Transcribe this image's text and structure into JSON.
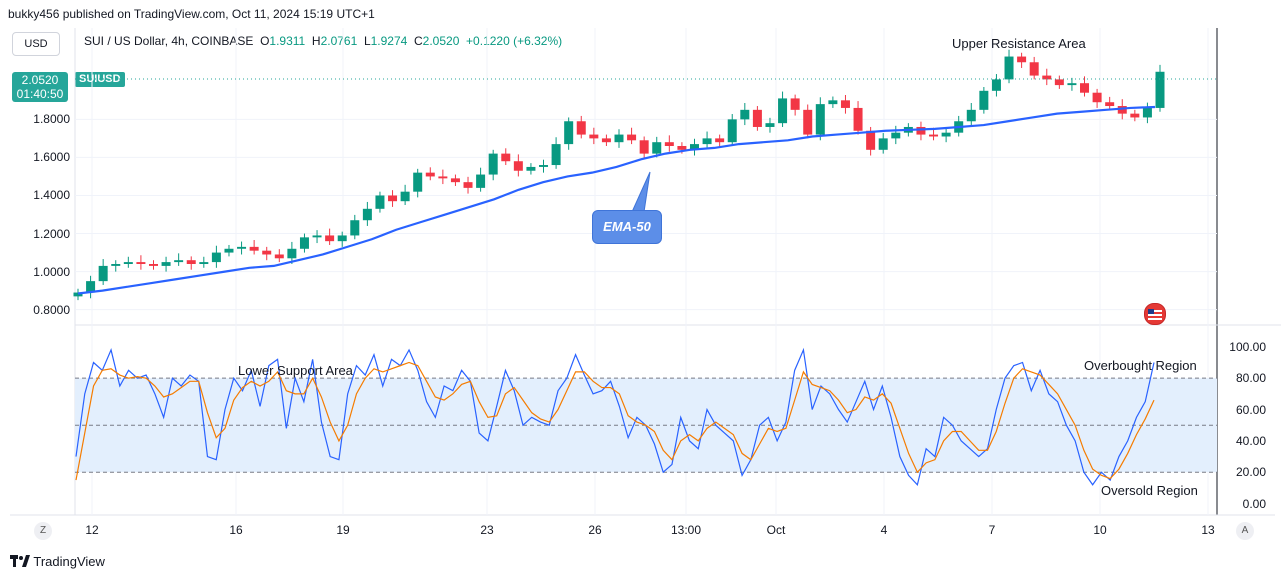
{
  "publish_line": "bukky456 published on TradingView.com, Oct 11, 2024 15:19 UTC+1",
  "currency_button": "USD",
  "symbol": {
    "name": "SUI / US Dollar, 4h, COINBASE",
    "o_label": "O",
    "o": "1.9311",
    "h_label": "H",
    "h": "2.0761",
    "l_label": "L",
    "l": "1.9274",
    "c_label": "C",
    "c": "2.0520",
    "change": "+0.1220 (+6.32%)"
  },
  "price_badge": {
    "price": "2.0520",
    "countdown": "01:40:50",
    "ticker": "SUIUSD"
  },
  "annotations": {
    "upper_resistance": "Upper Resistance Area",
    "lower_support": "Lower Support Area",
    "ema": "EMA-50",
    "overbought": "Overbought Region",
    "oversold": "Oversold Region"
  },
  "buttons": {
    "z": "Z",
    "a": "A"
  },
  "footer": {
    "brand": "TradingView"
  },
  "colors": {
    "up": "#089981",
    "down": "#f23645",
    "ema": "#2962ff",
    "k_line": "#2962ff",
    "d_line": "#f57c00",
    "band": "#e3effd"
  },
  "chart_data": [
    {
      "type": "candlestick",
      "yticks": [
        "0.8000",
        "1.0000",
        "1.2000",
        "1.4000",
        "1.6000",
        "1.8000"
      ],
      "ylim": [
        0.73,
        2.28
      ],
      "xticks": [
        "12",
        "16",
        "19",
        "23",
        "26",
        "13:00",
        "Oct",
        "4",
        "7",
        "10",
        "13"
      ],
      "last_price": 2.052,
      "close": [
        0.89,
        0.95,
        1.03,
        1.04,
        1.05,
        1.04,
        1.03,
        1.05,
        1.06,
        1.04,
        1.05,
        1.1,
        1.12,
        1.13,
        1.11,
        1.09,
        1.07,
        1.12,
        1.18,
        1.19,
        1.16,
        1.19,
        1.27,
        1.33,
        1.4,
        1.37,
        1.42,
        1.52,
        1.5,
        1.49,
        1.47,
        1.44,
        1.51,
        1.62,
        1.58,
        1.53,
        1.55,
        1.56,
        1.67,
        1.79,
        1.72,
        1.7,
        1.68,
        1.72,
        1.69,
        1.62,
        1.68,
        1.66,
        1.64,
        1.67,
        1.7,
        1.68,
        1.8,
        1.85,
        1.76,
        1.78,
        1.91,
        1.85,
        1.72,
        1.88,
        1.9,
        1.86,
        1.74,
        1.64,
        1.7,
        1.73,
        1.76,
        1.72,
        1.71,
        1.73,
        1.79,
        1.85,
        1.95,
        2.01,
        2.13,
        2.1,
        2.03,
        2.01,
        1.98,
        1.99,
        1.94,
        1.89,
        1.87,
        1.83,
        1.81,
        1.86,
        2.05
      ],
      "ema50": [
        0.885,
        0.9,
        0.92,
        0.94,
        0.96,
        0.98,
        1.0,
        1.02,
        1.03,
        1.06,
        1.09,
        1.13,
        1.17,
        1.22,
        1.26,
        1.3,
        1.34,
        1.38,
        1.43,
        1.47,
        1.5,
        1.52,
        1.55,
        1.59,
        1.62,
        1.64,
        1.65,
        1.67,
        1.68,
        1.69,
        1.71,
        1.72,
        1.73,
        1.74,
        1.745,
        1.75,
        1.76,
        1.77,
        1.79,
        1.81,
        1.83,
        1.84,
        1.85,
        1.86,
        1.865
      ]
    },
    {
      "type": "line",
      "yticks": [
        "0.00",
        "20.00",
        "40.00",
        "60.00",
        "80.00",
        "100.00"
      ],
      "ylim": [
        -6,
        112
      ],
      "bands": [
        20,
        80
      ],
      "midline": 50,
      "series": [
        {
          "values": [
            30,
            70,
            90,
            85,
            98,
            75,
            85,
            80,
            82,
            70,
            55,
            80,
            75,
            82,
            78,
            30,
            28,
            60,
            80,
            72,
            85,
            62,
            88,
            92,
            48,
            80,
            65,
            92,
            52,
            30,
            28,
            70,
            88,
            82,
            95,
            75,
            92,
            88,
            98,
            85,
            65,
            55,
            75,
            72,
            85,
            78,
            45,
            40,
            62,
            85,
            72,
            50,
            55,
            52,
            50,
            72,
            80,
            95,
            82,
            70,
            72,
            78,
            62,
            42,
            55,
            50,
            38,
            20,
            25,
            55,
            40,
            35,
            60,
            50,
            45,
            40,
            18,
            28,
            50,
            55,
            40,
            52,
            85,
            98,
            60,
            75,
            70,
            60,
            52,
            65,
            78,
            60,
            75,
            55,
            30,
            18,
            12,
            35,
            30,
            55,
            50,
            40,
            35,
            30,
            35,
            60,
            80,
            88,
            90,
            72,
            85,
            70,
            65,
            50,
            40,
            20,
            12,
            20,
            15,
            30,
            40,
            55,
            65,
            90
          ]
        },
        {
          "values": [
            15,
            45,
            75,
            85,
            86,
            82,
            80,
            81,
            80,
            75,
            68,
            70,
            74,
            78,
            78,
            58,
            42,
            48,
            66,
            74,
            78,
            75,
            78,
            84,
            72,
            70,
            70,
            80,
            68,
            52,
            40,
            50,
            70,
            80,
            86,
            84,
            86,
            88,
            90,
            88,
            78,
            68,
            66,
            70,
            76,
            78,
            65,
            55,
            56,
            70,
            74,
            66,
            58,
            54,
            52,
            60,
            72,
            84,
            84,
            78,
            74,
            74,
            70,
            56,
            52,
            50,
            46,
            34,
            28,
            40,
            44,
            40,
            48,
            52,
            48,
            44,
            32,
            28,
            38,
            48,
            46,
            48,
            66,
            84,
            76,
            74,
            72,
            66,
            58,
            60,
            68,
            66,
            70,
            64,
            48,
            32,
            20,
            26,
            28,
            40,
            46,
            46,
            40,
            34,
            34,
            46,
            64,
            80,
            86,
            84,
            82,
            76,
            70,
            60,
            50,
            34,
            22,
            18,
            16,
            22,
            32,
            44,
            54,
            66
          ]
        }
      ]
    }
  ]
}
